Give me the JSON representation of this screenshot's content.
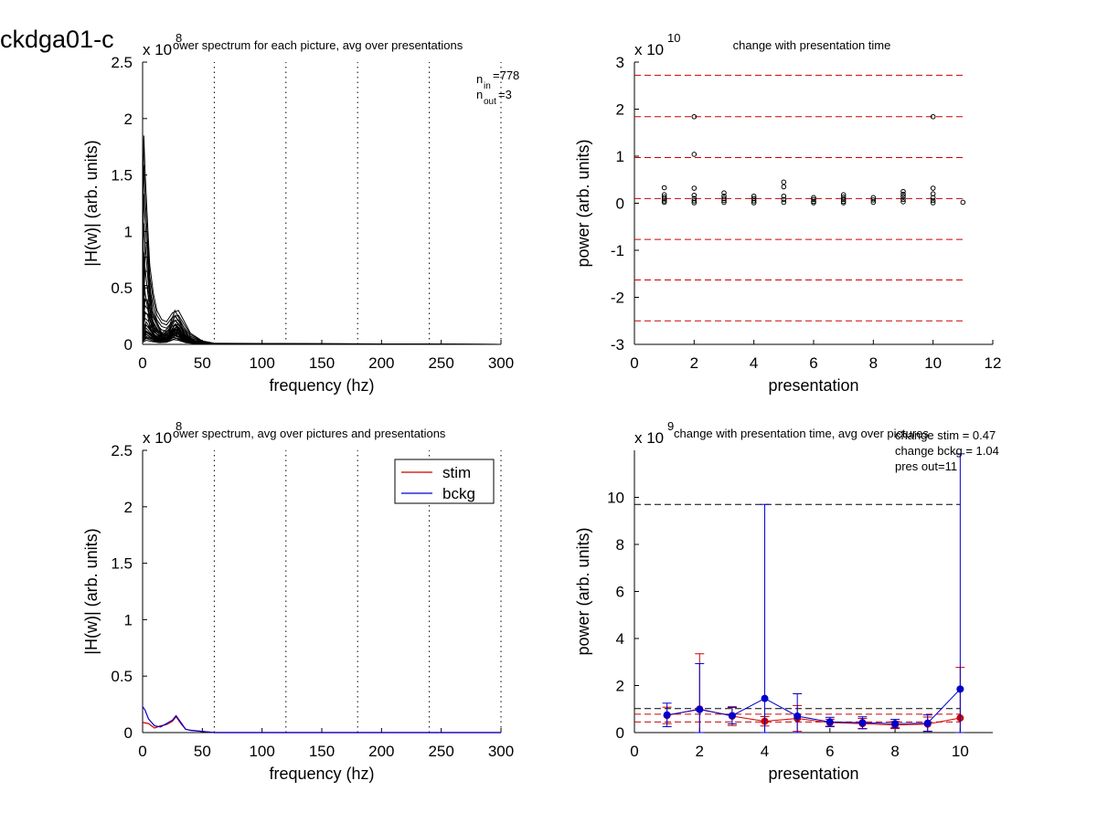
{
  "figure_title": "ckdga01-c",
  "colors": {
    "stim": "#cc0000",
    "bckg": "#0000cc",
    "ref_red": "#cc0000",
    "ref_black": "#000000",
    "trace": "#000000"
  },
  "chart_data": [
    {
      "type": "line",
      "title": "ower spectrum for each picture, avg over presentations",
      "xlabel": "frequency (hz)",
      "ylabel": "|H(w)| (arb. units)",
      "multiplier": "x 10",
      "multiplier_exp": "8",
      "xlim": [
        0,
        300
      ],
      "ylim": [
        0,
        2.5
      ],
      "xticks": [
        0,
        50,
        100,
        150,
        200,
        250,
        300
      ],
      "yticks": [
        0,
        0.5,
        1,
        1.5,
        2,
        2.5
      ],
      "vlines": [
        60,
        120,
        180,
        240,
        300
      ],
      "annotation": {
        "n_in": "n",
        "n_in_sub": "in",
        "n_in_val": "=778",
        "n_out": "n",
        "n_out_sub": "out",
        "n_out_val": "=3"
      },
      "envelope_peaks": [
        {
          "x": [
            0,
            1,
            2,
            4,
            6,
            9,
            12,
            16,
            20,
            25,
            30,
            35,
            40,
            50,
            60,
            300
          ],
          "y": [
            1.0,
            1.85,
            1.55,
            1.1,
            0.7,
            0.45,
            0.3,
            0.22,
            0.2,
            0.28,
            0.3,
            0.2,
            0.1,
            0.03,
            0.01,
            0.0
          ]
        },
        {
          "x": [
            0,
            2,
            4,
            6,
            8,
            12,
            16,
            22,
            27,
            32,
            38,
            45,
            55,
            300
          ],
          "y": [
            0.3,
            0.9,
            0.9,
            0.55,
            0.3,
            0.2,
            0.1,
            0.15,
            0.3,
            0.2,
            0.08,
            0.02,
            0.0,
            0.0
          ]
        },
        {
          "x": [
            0,
            2,
            5,
            10,
            16,
            22,
            27,
            31,
            36,
            45,
            55,
            300
          ],
          "y": [
            0.2,
            0.4,
            0.35,
            0.15,
            0.08,
            0.12,
            0.25,
            0.2,
            0.06,
            0.02,
            0.0,
            0.0
          ]
        },
        {
          "x": [
            0,
            3,
            6,
            10,
            15,
            22,
            28,
            33,
            40,
            50,
            60,
            300
          ],
          "y": [
            0.1,
            0.2,
            0.15,
            0.08,
            0.05,
            0.1,
            0.18,
            0.1,
            0.04,
            0.01,
            0.0,
            0.0
          ]
        },
        {
          "x": [
            0,
            3,
            8,
            14,
            20,
            26,
            30,
            36,
            44,
            55,
            300
          ],
          "y": [
            0.06,
            0.12,
            0.08,
            0.05,
            0.06,
            0.14,
            0.12,
            0.05,
            0.02,
            0.0,
            0.0
          ]
        }
      ]
    },
    {
      "type": "scatter",
      "title": "change with presentation time",
      "xlabel": "presentation",
      "ylabel": "power (arb. units)",
      "multiplier": "x 10",
      "multiplier_exp": "10",
      "xlim": [
        0,
        12
      ],
      "ylim": [
        -3,
        3
      ],
      "xticks": [
        0,
        2,
        4,
        6,
        8,
        10,
        12
      ],
      "yticks": [
        -3,
        -2,
        -1,
        0,
        1,
        2,
        3
      ],
      "ref_lines": [
        2.72,
        1.84,
        0.97,
        0.1,
        -0.77,
        -1.63,
        -2.5
      ],
      "ref_xrange": [
        0,
        11
      ],
      "points": [
        [
          1,
          0.33
        ],
        [
          1,
          0.18
        ],
        [
          1,
          0.13
        ],
        [
          1,
          0.09
        ],
        [
          1,
          0.05
        ],
        [
          1,
          0.02
        ],
        [
          2,
          1.84
        ],
        [
          2,
          1.04
        ],
        [
          2,
          0.32
        ],
        [
          2,
          0.17
        ],
        [
          2,
          0.1
        ],
        [
          2,
          0.05
        ],
        [
          2,
          0.01
        ],
        [
          3,
          0.22
        ],
        [
          3,
          0.15
        ],
        [
          3,
          0.1
        ],
        [
          3,
          0.06
        ],
        [
          3,
          0.02
        ],
        [
          4,
          0.15
        ],
        [
          4,
          0.1
        ],
        [
          4,
          0.05
        ],
        [
          4,
          0.01
        ],
        [
          5,
          0.45
        ],
        [
          5,
          0.35
        ],
        [
          5,
          0.15
        ],
        [
          5,
          0.08
        ],
        [
          5,
          0.02
        ],
        [
          6,
          0.12
        ],
        [
          6,
          0.08
        ],
        [
          6,
          0.04
        ],
        [
          6,
          0.01
        ],
        [
          7,
          0.18
        ],
        [
          7,
          0.13
        ],
        [
          7,
          0.08
        ],
        [
          7,
          0.04
        ],
        [
          7,
          0.01
        ],
        [
          8,
          0.12
        ],
        [
          8,
          0.07
        ],
        [
          8,
          0.02
        ],
        [
          9,
          0.25
        ],
        [
          9,
          0.19
        ],
        [
          9,
          0.14
        ],
        [
          9,
          0.08
        ],
        [
          9,
          0.03
        ],
        [
          10,
          1.84
        ],
        [
          10,
          0.32
        ],
        [
          10,
          0.2
        ],
        [
          10,
          0.12
        ],
        [
          10,
          0.06
        ],
        [
          10,
          0.01
        ],
        [
          11,
          0.02
        ]
      ]
    },
    {
      "type": "line",
      "title": "ower spectrum, avg over pictures and presentations",
      "xlabel": "frequency (hz)",
      "ylabel": "|H(w)| (arb. units)",
      "multiplier": "x 10",
      "multiplier_exp": "8",
      "xlim": [
        0,
        300
      ],
      "ylim": [
        0,
        2.5
      ],
      "xticks": [
        0,
        50,
        100,
        150,
        200,
        250,
        300
      ],
      "yticks": [
        0,
        0.5,
        1,
        1.5,
        2,
        2.5
      ],
      "vlines": [
        60,
        120,
        180,
        240,
        300
      ],
      "legend_position": "top-right",
      "series": [
        {
          "name": "stim",
          "color": "#cc0000",
          "x": [
            0,
            5,
            10,
            15,
            20,
            25,
            28,
            32,
            36,
            40,
            45,
            50,
            55,
            60,
            300
          ],
          "y": [
            0.09,
            0.08,
            0.04,
            0.06,
            0.07,
            0.1,
            0.14,
            0.08,
            0.03,
            0.02,
            0.015,
            0.01,
            0.005,
            0.0,
            0.0
          ]
        },
        {
          "name": "bckg",
          "color": "#0000cc",
          "x": [
            0,
            2,
            5,
            10,
            15,
            20,
            25,
            28,
            32,
            36,
            40,
            45,
            50,
            55,
            60,
            300
          ],
          "y": [
            0.23,
            0.2,
            0.12,
            0.06,
            0.05,
            0.08,
            0.11,
            0.15,
            0.09,
            0.03,
            0.02,
            0.015,
            0.01,
            0.005,
            0.0,
            0.0
          ]
        }
      ]
    },
    {
      "type": "line",
      "title": "change with presentation time, avg over pictures",
      "xlabel": "presentation",
      "ylabel": "power (arb. units)",
      "multiplier": "x 10",
      "multiplier_exp": "9",
      "xlim": [
        0,
        11
      ],
      "ylim": [
        0,
        12
      ],
      "xticks": [
        0,
        2,
        4,
        6,
        8,
        10
      ],
      "yticks": [
        0,
        2,
        4,
        6,
        8,
        10
      ],
      "annotation": [
        "change stim = 0.47",
        "change bckg = 1.04",
        "pres out=11"
      ],
      "ref_lines_black": [
        9.7,
        1.02
      ],
      "ref_lines_red": [
        0.78,
        0.45
      ],
      "ref_xrange": [
        0,
        10
      ],
      "series": [
        {
          "name": "stim",
          "color": "#cc0000",
          "x": [
            1,
            2,
            3,
            4,
            5,
            6,
            7,
            8,
            9,
            10
          ],
          "y": [
            0.73,
            1.0,
            0.7,
            0.48,
            0.6,
            0.42,
            0.38,
            0.32,
            0.36,
            0.62
          ],
          "err": [
            0.35,
            2.35,
            0.4,
            0.2,
            0.55,
            0.15,
            0.22,
            0.15,
            0.3,
            2.15
          ]
        },
        {
          "name": "bckg",
          "color": "#0000cc",
          "x": [
            1,
            2,
            3,
            4,
            5,
            6,
            7,
            8,
            9,
            10
          ],
          "y": [
            0.75,
            0.98,
            0.72,
            1.45,
            0.7,
            0.45,
            0.42,
            0.38,
            0.4,
            1.85
          ],
          "err": [
            0.5,
            1.95,
            0.35,
            8.25,
            0.95,
            0.2,
            0.25,
            0.18,
            0.35,
            10.0
          ]
        }
      ]
    }
  ]
}
